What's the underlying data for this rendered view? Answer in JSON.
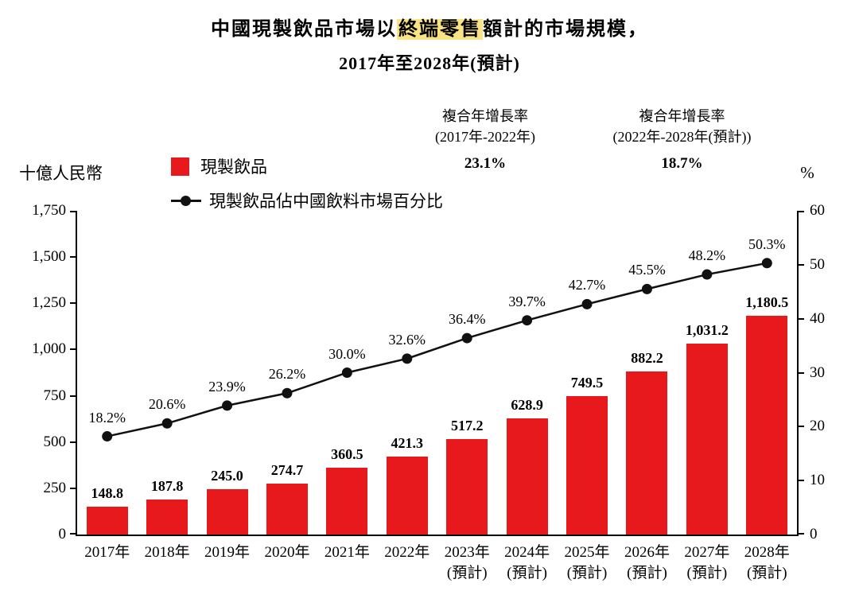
{
  "title": {
    "line1_pre": "中國現製飲品市場以",
    "line1_highlight": "終端零售",
    "line1_post": "額計的市場規模，",
    "line2": "2017年至2028年(預計)"
  },
  "cagr": [
    {
      "line1": "複合年增長率",
      "line2": "(2017年-2022年)",
      "value": "23.1%"
    },
    {
      "line1": "複合年增長率",
      "line2": "(2022年-2028年(預計))",
      "value": "18.7%"
    }
  ],
  "legend": {
    "bar_label": "現製飲品",
    "line_label": "現製飲品佔中國飲料市場百分比"
  },
  "axes": {
    "left_label": "十億人民幣",
    "right_label": "%",
    "left_ticks": [
      "1,750",
      "1,500",
      "1,250",
      "1,000",
      "750",
      "500",
      "250",
      "0"
    ],
    "right_ticks": [
      "60",
      "50",
      "40",
      "30",
      "20",
      "10",
      "0"
    ]
  },
  "colors": {
    "bar": "#e8191c",
    "line": "#111111",
    "highlight": "#f9e385"
  },
  "chart_data": {
    "type": "bar+line",
    "title": "中國現製飲品市場以終端零售額計的市場規模，2017年至2028年(預計)",
    "left_ylabel": "十億人民幣",
    "right_ylabel": "%",
    "left_ylim": [
      0,
      1750
    ],
    "right_ylim": [
      0,
      60
    ],
    "grid": false,
    "legend_position": "top-left",
    "categories": [
      {
        "label": "2017年",
        "sublabel": ""
      },
      {
        "label": "2018年",
        "sublabel": ""
      },
      {
        "label": "2019年",
        "sublabel": ""
      },
      {
        "label": "2020年",
        "sublabel": ""
      },
      {
        "label": "2021年",
        "sublabel": ""
      },
      {
        "label": "2022年",
        "sublabel": ""
      },
      {
        "label": "2023年",
        "sublabel": "(預計)"
      },
      {
        "label": "2024年",
        "sublabel": "(預計)"
      },
      {
        "label": "2025年",
        "sublabel": "(預計)"
      },
      {
        "label": "2026年",
        "sublabel": "(預計)"
      },
      {
        "label": "2027年",
        "sublabel": "(預計)"
      },
      {
        "label": "2028年",
        "sublabel": "(預計)"
      }
    ],
    "series": [
      {
        "name": "現製飲品",
        "type": "bar",
        "axis": "left",
        "values": [
          148.8,
          187.8,
          245.0,
          274.7,
          360.5,
          421.3,
          517.2,
          628.9,
          749.5,
          882.2,
          1031.2,
          1180.5
        ],
        "labels": [
          "148.8",
          "187.8",
          "245.0",
          "274.7",
          "360.5",
          "421.3",
          "517.2",
          "628.9",
          "749.5",
          "882.2",
          "1,031.2",
          "1,180.5"
        ]
      },
      {
        "name": "現製飲品佔中國飲料市場百分比",
        "type": "line",
        "axis": "right",
        "values": [
          18.2,
          20.6,
          23.9,
          26.2,
          30.0,
          32.6,
          36.4,
          39.7,
          42.7,
          45.5,
          48.2,
          50.3
        ],
        "labels": [
          "18.2%",
          "20.6%",
          "23.9%",
          "26.2%",
          "30.0%",
          "32.6%",
          "36.4%",
          "39.7%",
          "42.7%",
          "45.5%",
          "48.2%",
          "50.3%"
        ]
      }
    ]
  }
}
